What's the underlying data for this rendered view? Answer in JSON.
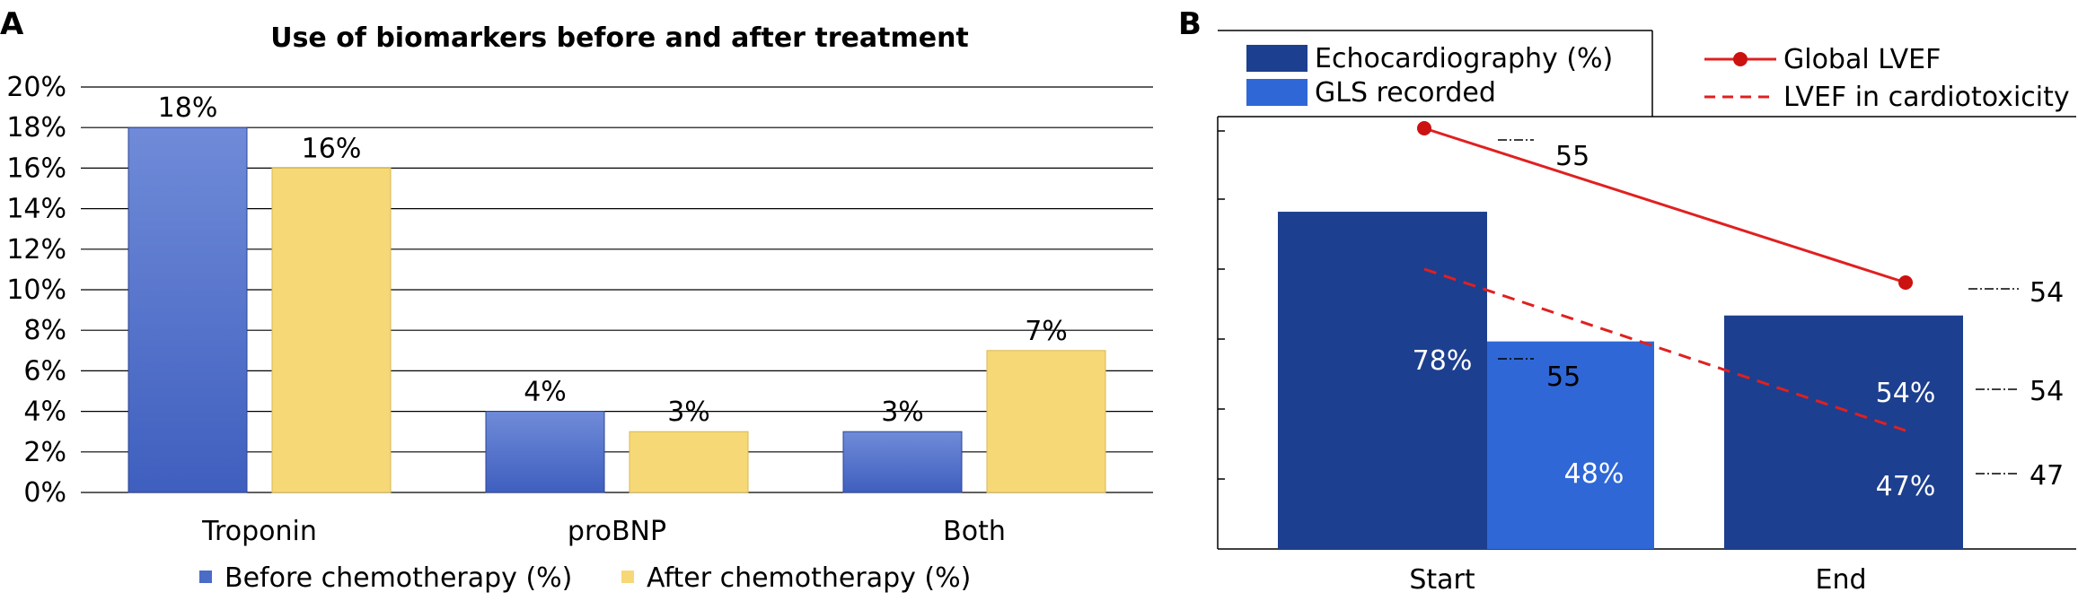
{
  "chart_data": [
    {
      "panel_label": "A",
      "type": "bar",
      "title": "Use of biomarkers before and after treatment",
      "categories": [
        "Troponin",
        "proBNP",
        "Both"
      ],
      "series": [
        {
          "name": "Before chemotherapy (%)",
          "values": [
            18,
            4,
            3
          ],
          "labels": [
            "18%",
            "4%",
            "3%"
          ],
          "color": "#4a6cc7"
        },
        {
          "name": "After chemotherapy (%)",
          "values": [
            16,
            3,
            7
          ],
          "labels": [
            "16%",
            "3%",
            "7%"
          ],
          "color": "#f7d877"
        }
      ],
      "yticks": [
        "0%",
        "2%",
        "4%",
        "6%",
        "8%",
        "10%",
        "12%",
        "14%",
        "16%",
        "18%",
        "20%"
      ],
      "ylim": [
        0,
        20
      ],
      "grid": true,
      "legend_position": "bottom"
    },
    {
      "panel_label": "B",
      "type": "bar",
      "categories": [
        "Start",
        "End"
      ],
      "ylim": [
        0,
        100
      ],
      "legend_position": "top",
      "bar_series": [
        {
          "name": "Echocardiography (%)",
          "values": [
            78,
            54
          ],
          "labels": [
            "78%",
            "54%"
          ],
          "color": "#1d3f8f"
        },
        {
          "name": "GLS recorded",
          "values": [
            48,
            47
          ],
          "labels": [
            "48%",
            "47%"
          ],
          "color": "#2f67d6"
        }
      ],
      "line_series": [
        {
          "name": "Global LVEF",
          "x": [
            "Start",
            "End"
          ],
          "values": [
            55,
            54
          ],
          "labels": [
            "55",
            "54"
          ],
          "style": "solid",
          "color": "#e02020"
        },
        {
          "name": "LVEF in cardiotoxicity",
          "x": [
            "Start",
            "End"
          ],
          "values": [
            55,
            47
          ],
          "labels": [
            "55",
            "47"
          ],
          "style": "dashed",
          "color": "#e02020"
        }
      ],
      "side_labels": [
        "54",
        "54",
        "47"
      ]
    }
  ]
}
